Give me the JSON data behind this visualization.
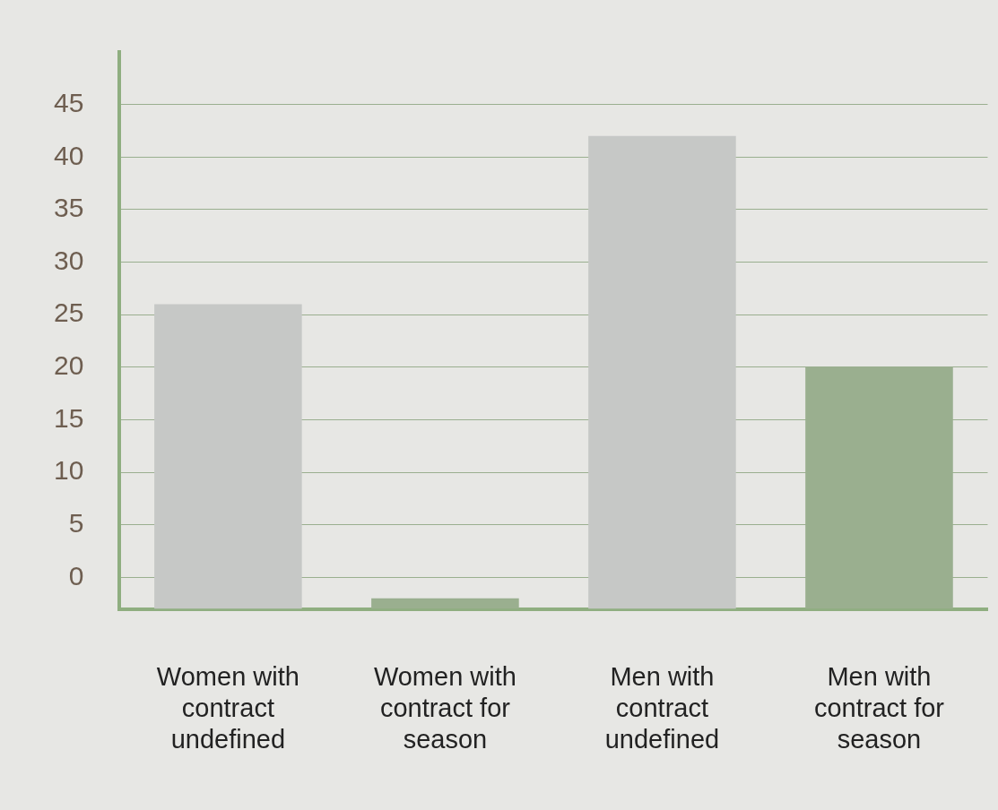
{
  "chart_data": {
    "type": "bar",
    "categories": [
      "Women with contract undefined",
      "Women with contract for season",
      "Men with contract undefined",
      "Men with contract for season"
    ],
    "base": [
      -3,
      -3,
      -3,
      -3
    ],
    "values": [
      29,
      1,
      45,
      23
    ],
    "colors": [
      "#c6c8c6",
      "#9aaf8f",
      "#c6c8c6",
      "#9aaf8f"
    ],
    "ylim": [
      -3,
      50
    ],
    "yticks": [
      0,
      5,
      10,
      15,
      20,
      25,
      30,
      35,
      40,
      45
    ],
    "grid": "y",
    "legend": false
  }
}
